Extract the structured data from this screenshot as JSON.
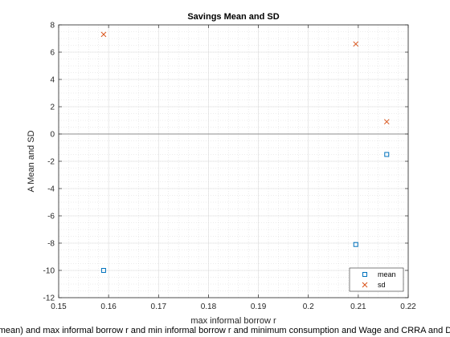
{
  "chart_data": {
    "type": "scatter",
    "title": "Savings Mean and SD",
    "xlabel": "max informal borrow r",
    "ylabel": "A Mean and SD",
    "caption": "mean) and max informal borrow r and min informal borrow r and minimum consumption and Wage and CRRA and D",
    "xlim": [
      0.15,
      0.22
    ],
    "ylim": [
      -12,
      8
    ],
    "xticks": [
      0.15,
      0.16,
      0.17,
      0.18,
      0.19,
      0.2,
      0.21,
      0.22
    ],
    "yticks": [
      -12,
      -10,
      -8,
      -6,
      -4,
      -2,
      0,
      2,
      4,
      6,
      8
    ],
    "xtick_labels": [
      "0.15",
      "0.16",
      "0.17",
      "0.18",
      "0.19",
      "0.2",
      "0.21",
      "0.22"
    ],
    "ytick_labels": [
      "-12",
      "-10",
      "-8",
      "-6",
      "-4",
      "-2",
      "0",
      "2",
      "4",
      "6",
      "8"
    ],
    "grid": true,
    "minor_grid": true,
    "zero_line": 0,
    "legend_location": "bottom-right",
    "series": [
      {
        "name": "mean",
        "marker": "square",
        "color": "#0072BD",
        "x": [
          0.159,
          0.2095,
          0.2157
        ],
        "y": [
          -10.0,
          -8.1,
          -1.5
        ]
      },
      {
        "name": "sd",
        "marker": "x",
        "color": "#D95319",
        "x": [
          0.159,
          0.2095,
          0.2157
        ],
        "y": [
          7.3,
          6.6,
          0.9
        ]
      }
    ]
  }
}
